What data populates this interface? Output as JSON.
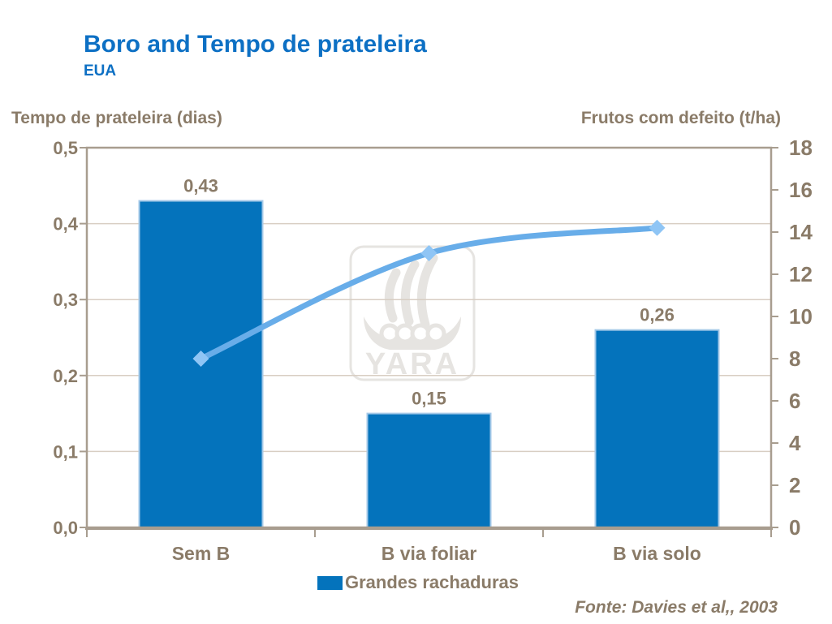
{
  "header": {
    "title": "Boro and Tempo de prateleira",
    "subtitle": "EUA"
  },
  "chart_data": {
    "type": "combo",
    "categories": [
      "Sem B",
      "B via foliar",
      "B via solo"
    ],
    "series": [
      {
        "name": "Grandes rachaduras",
        "type": "bar",
        "axis": "left",
        "values": [
          0.43,
          0.15,
          0.26
        ],
        "labels": [
          "0,43",
          "0,15",
          "0,26"
        ],
        "color": "#0473BC",
        "edge_color": "#A5C9E8"
      },
      {
        "name": "",
        "type": "line",
        "axis": "right",
        "values": [
          8,
          13,
          14.2
        ],
        "color": "#68ADE9",
        "marker": "diamond",
        "marker_color": "#8FC5F5"
      }
    ],
    "left_axis": {
      "title": "Tempo de prateleira (dias)",
      "min": 0,
      "max": 0.5,
      "tick_labels": [
        "0,5",
        "0,4",
        "0,3",
        "0,2",
        "0,1",
        "0,0"
      ]
    },
    "right_axis": {
      "title": "Frutos com defeito (t/ha)",
      "min": 0,
      "max": 18,
      "tick_labels": [
        "18",
        "16",
        "14",
        "12",
        "10",
        "8",
        "6",
        "4",
        "2",
        "0"
      ]
    },
    "grid": true,
    "legend_position": "bottom"
  },
  "legend": {
    "items": [
      {
        "label": "Grandes rachaduras",
        "color": "#0473BC"
      }
    ]
  },
  "footer": {
    "source": "Fonte: Davies et al,, 2003"
  },
  "watermark": {
    "text": "YARA"
  },
  "colors": {
    "title_blue": "#0D70C4",
    "text_brown": "#8A7B68",
    "grid": "#D8CEC3",
    "axis": "#A89D8F",
    "watermark_gray": "#E6E4E1"
  }
}
